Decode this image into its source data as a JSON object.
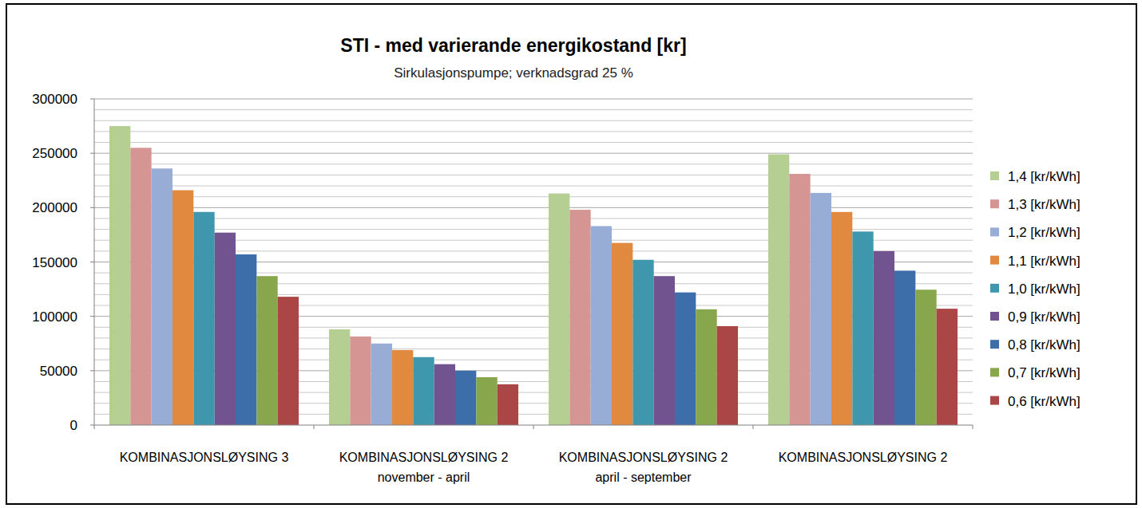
{
  "chart_data": {
    "type": "bar",
    "title": "STI - med varierande energikostand [kr]",
    "subtitle": "Sirkulasjonspumpe; verknadsgrad 25 %",
    "categories": [
      "KOMBINASJONSLØYSING 3",
      "KOMBINASJONSLØYSING 2\nnovember - april",
      "KOMBINASJONSLØYSING 2\napril - september",
      "KOMBINASJONSLØYSING 2"
    ],
    "series": [
      {
        "name": "1,4 [kr/kWh]",
        "color": "#b5cf92",
        "values": [
          275000,
          88000,
          213000,
          249000
        ]
      },
      {
        "name": "1,3 [kr/kWh]",
        "color": "#d59593",
        "values": [
          255000,
          81500,
          198000,
          231000
        ]
      },
      {
        "name": "1,2 [kr/kWh]",
        "color": "#98add6",
        "values": [
          236000,
          75000,
          183000,
          213500
        ]
      },
      {
        "name": "1,1 [kr/kWh]",
        "color": "#e0893f",
        "values": [
          216000,
          69000,
          167500,
          196000
        ]
      },
      {
        "name": "1,0 [kr/kWh]",
        "color": "#3f97ae",
        "values": [
          196000,
          62500,
          152000,
          178000
        ]
      },
      {
        "name": "0,9 [kr/kWh]",
        "color": "#71538f",
        "values": [
          177000,
          56000,
          137000,
          160000
        ]
      },
      {
        "name": "0,8 [kr/kWh]",
        "color": "#3e6ea9",
        "values": [
          157000,
          50000,
          122000,
          142000
        ]
      },
      {
        "name": "0,7 [kr/kWh]",
        "color": "#88a64b",
        "values": [
          137000,
          44000,
          106500,
          124500
        ]
      },
      {
        "name": "0,6 [kr/kWh]",
        "color": "#aa4645",
        "values": [
          118000,
          37500,
          91000,
          107000
        ]
      }
    ],
    "ylim": [
      0,
      300000
    ],
    "yticks": [
      0,
      50000,
      100000,
      150000,
      200000,
      250000,
      300000
    ],
    "grid": true,
    "legend": "right"
  }
}
